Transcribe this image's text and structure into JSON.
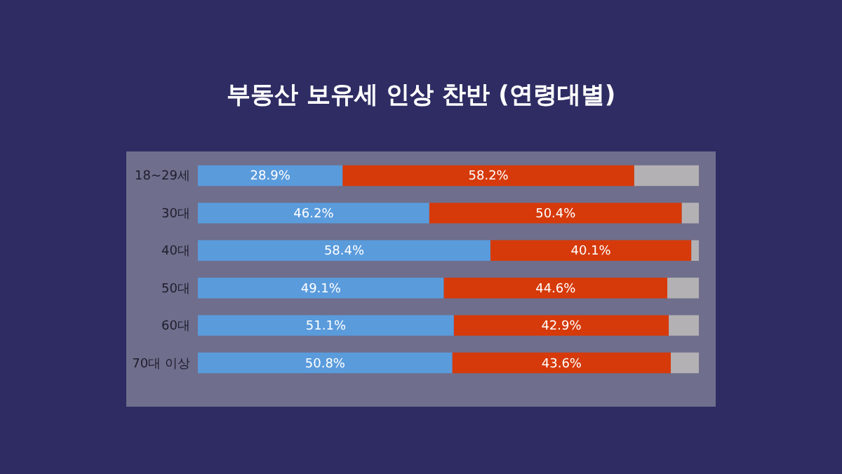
{
  "chart_data": {
    "type": "bar",
    "orientation": "horizontal",
    "stacked": true,
    "title": "부동산 보유세 인상 찬반 (연령대별)",
    "categories": [
      "18~29세",
      "30대",
      "40대",
      "50대",
      "60대",
      "70대 이상"
    ],
    "xlim": [
      0,
      100
    ],
    "tick_labels": false,
    "series": [
      {
        "color": "#5a9bdc",
        "values": [
          28.9,
          46.2,
          58.4,
          49.1,
          51.1,
          50.8
        ],
        "value_labels": [
          "28.9%",
          "46.2%",
          "58.4%",
          "49.1%",
          "51.1%",
          "50.8%"
        ]
      },
      {
        "color": "#d63a0a",
        "values": [
          58.2,
          50.4,
          40.1,
          44.6,
          42.9,
          43.6
        ],
        "value_labels": [
          "58.2%",
          "50.4%",
          "40.1%",
          "44.6%",
          "42.9%",
          "43.6%"
        ]
      },
      {
        "color": "#b4b1b4",
        "values": [
          12.9,
          3.4,
          1.5,
          6.3,
          6.0,
          5.6
        ],
        "value_labels": [
          null,
          null,
          null,
          null,
          null,
          null
        ]
      }
    ]
  }
}
